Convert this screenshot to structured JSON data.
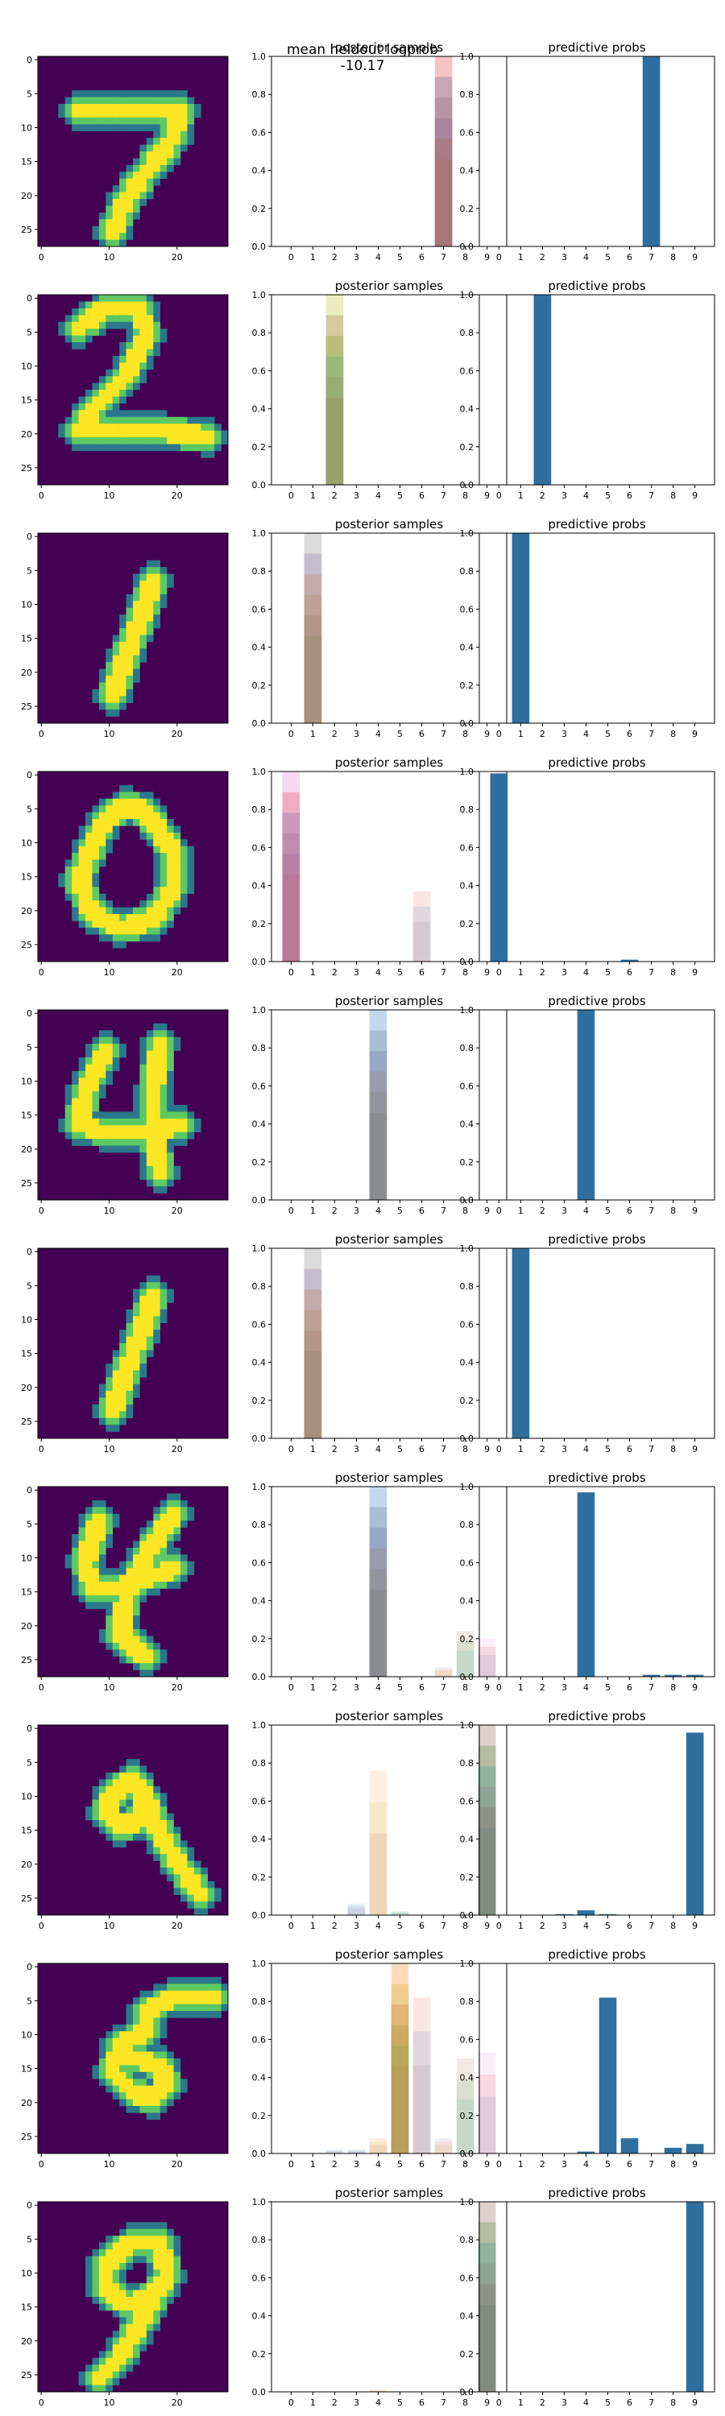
{
  "figure": {
    "suptitle": "mean heldout logprob -10.17",
    "sample_colors": [
      "#ff7f0e",
      "#2ca02c",
      "#d62728",
      "#9467bd",
      "#8c564b",
      "#e377c2",
      "#7f7f7f",
      "#bcbd22",
      "#17becf",
      "#1f77b4"
    ],
    "image_colormap": [
      "#440154",
      "#3b528b",
      "#21918c",
      "#5ec962",
      "#fde725"
    ]
  },
  "chart_data": [
    {
      "row": 1,
      "digit_image": {
        "type": "heatmap",
        "depicts": "7",
        "x_ticks": [
          "0",
          "10",
          "20"
        ],
        "y_ticks": [
          "0",
          "5",
          "10",
          "15",
          "20",
          "25"
        ]
      },
      "posterior_samples": {
        "type": "bar",
        "title": "posterior samples",
        "categories": [
          "0",
          "1",
          "2",
          "3",
          "4",
          "5",
          "6",
          "7",
          "8",
          "9"
        ],
        "ylim": [
          0,
          1.0
        ],
        "yticks": [
          "0.0",
          "0.2",
          "0.4",
          "0.6",
          "0.8",
          "1.0"
        ],
        "max_sample_values": [
          0,
          0,
          0,
          0,
          0,
          0,
          0,
          1.0,
          0,
          0
        ]
      },
      "predictive_probs": {
        "type": "bar",
        "title": "predictive probs",
        "categories": [
          "0",
          "1",
          "2",
          "3",
          "4",
          "5",
          "6",
          "7",
          "8",
          "9"
        ],
        "ylim": [
          0,
          1.0
        ],
        "yticks": [
          "0.0",
          "0.2",
          "0.4",
          "0.6",
          "0.8",
          "1.0"
        ],
        "values": [
          0,
          0,
          0,
          0,
          0,
          0,
          0,
          1.0,
          0,
          0
        ],
        "color": "#2f6f9f"
      }
    },
    {
      "row": 2,
      "digit_image": {
        "type": "heatmap",
        "depicts": "2",
        "x_ticks": [
          "0",
          "10",
          "20"
        ],
        "y_ticks": [
          "0",
          "5",
          "10",
          "15",
          "20",
          "25"
        ]
      },
      "posterior_samples": {
        "type": "bar",
        "title": "posterior samples",
        "categories": [
          "0",
          "1",
          "2",
          "3",
          "4",
          "5",
          "6",
          "7",
          "8",
          "9"
        ],
        "ylim": [
          0,
          1.0
        ],
        "yticks": [
          "0.0",
          "0.2",
          "0.4",
          "0.6",
          "0.8",
          "1.0"
        ],
        "max_sample_values": [
          0,
          0,
          1.0,
          0,
          0,
          0,
          0,
          0,
          0,
          0
        ]
      },
      "predictive_probs": {
        "type": "bar",
        "title": "predictive probs",
        "categories": [
          "0",
          "1",
          "2",
          "3",
          "4",
          "5",
          "6",
          "7",
          "8",
          "9"
        ],
        "ylim": [
          0,
          1.0
        ],
        "yticks": [
          "0.0",
          "0.2",
          "0.4",
          "0.6",
          "0.8",
          "1.0"
        ],
        "values": [
          0,
          0,
          1.0,
          0,
          0,
          0,
          0,
          0,
          0,
          0
        ],
        "color": "#2f6f9f"
      }
    },
    {
      "row": 3,
      "digit_image": {
        "type": "heatmap",
        "depicts": "1",
        "x_ticks": [
          "0",
          "10",
          "20"
        ],
        "y_ticks": [
          "0",
          "5",
          "10",
          "15",
          "20",
          "25"
        ]
      },
      "posterior_samples": {
        "type": "bar",
        "title": "posterior samples",
        "categories": [
          "0",
          "1",
          "2",
          "3",
          "4",
          "5",
          "6",
          "7",
          "8",
          "9"
        ],
        "ylim": [
          0,
          1.0
        ],
        "yticks": [
          "0.0",
          "0.2",
          "0.4",
          "0.6",
          "0.8",
          "1.0"
        ],
        "max_sample_values": [
          0,
          1.0,
          0,
          0,
          0,
          0,
          0,
          0,
          0,
          0
        ]
      },
      "predictive_probs": {
        "type": "bar",
        "title": "predictive probs",
        "categories": [
          "0",
          "1",
          "2",
          "3",
          "4",
          "5",
          "6",
          "7",
          "8",
          "9"
        ],
        "ylim": [
          0,
          1.0
        ],
        "yticks": [
          "0.0",
          "0.2",
          "0.4",
          "0.6",
          "0.8",
          "1.0"
        ],
        "values": [
          0,
          1.0,
          0,
          0,
          0,
          0,
          0,
          0,
          0,
          0
        ],
        "color": "#2f6f9f"
      }
    },
    {
      "row": 4,
      "digit_image": {
        "type": "heatmap",
        "depicts": "0",
        "x_ticks": [
          "0",
          "10",
          "20"
        ],
        "y_ticks": [
          "0",
          "5",
          "10",
          "15",
          "20",
          "25"
        ]
      },
      "posterior_samples": {
        "type": "bar",
        "title": "posterior samples",
        "categories": [
          "0",
          "1",
          "2",
          "3",
          "4",
          "5",
          "6",
          "7",
          "8",
          "9"
        ],
        "ylim": [
          0,
          1.0
        ],
        "yticks": [
          "0.0",
          "0.2",
          "0.4",
          "0.6",
          "0.8",
          "1.0"
        ],
        "max_sample_values": [
          1.0,
          0,
          0,
          0,
          0,
          0,
          0.37,
          0,
          0,
          0
        ]
      },
      "predictive_probs": {
        "type": "bar",
        "title": "predictive probs",
        "categories": [
          "0",
          "1",
          "2",
          "3",
          "4",
          "5",
          "6",
          "7",
          "8",
          "9"
        ],
        "ylim": [
          0,
          1.0
        ],
        "yticks": [
          "0.0",
          "0.2",
          "0.4",
          "0.6",
          "0.8",
          "1.0"
        ],
        "values": [
          0.99,
          0,
          0,
          0,
          0,
          0,
          0.01,
          0,
          0,
          0
        ],
        "color": "#2f6f9f"
      }
    },
    {
      "row": 5,
      "digit_image": {
        "type": "heatmap",
        "depicts": "4",
        "x_ticks": [
          "0",
          "10",
          "20"
        ],
        "y_ticks": [
          "0",
          "5",
          "10",
          "15",
          "20",
          "25"
        ]
      },
      "posterior_samples": {
        "type": "bar",
        "title": "posterior samples",
        "categories": [
          "0",
          "1",
          "2",
          "3",
          "4",
          "5",
          "6",
          "7",
          "8",
          "9"
        ],
        "ylim": [
          0,
          1.0
        ],
        "yticks": [
          "0.0",
          "0.2",
          "0.4",
          "0.6",
          "0.8",
          "1.0"
        ],
        "max_sample_values": [
          0,
          0,
          0,
          0,
          1.0,
          0,
          0,
          0,
          0,
          0
        ]
      },
      "predictive_probs": {
        "type": "bar",
        "title": "predictive probs",
        "categories": [
          "0",
          "1",
          "2",
          "3",
          "4",
          "5",
          "6",
          "7",
          "8",
          "9"
        ],
        "ylim": [
          0,
          1.0
        ],
        "yticks": [
          "0.0",
          "0.2",
          "0.4",
          "0.6",
          "0.8",
          "1.0"
        ],
        "values": [
          0,
          0,
          0,
          0,
          1.0,
          0,
          0,
          0,
          0,
          0
        ],
        "color": "#2f6f9f"
      }
    },
    {
      "row": 6,
      "digit_image": {
        "type": "heatmap",
        "depicts": "1",
        "x_ticks": [
          "0",
          "10",
          "20"
        ],
        "y_ticks": [
          "0",
          "5",
          "10",
          "15",
          "20",
          "25"
        ]
      },
      "posterior_samples": {
        "type": "bar",
        "title": "posterior samples",
        "categories": [
          "0",
          "1",
          "2",
          "3",
          "4",
          "5",
          "6",
          "7",
          "8",
          "9"
        ],
        "ylim": [
          0,
          1.0
        ],
        "yticks": [
          "0.0",
          "0.2",
          "0.4",
          "0.6",
          "0.8",
          "1.0"
        ],
        "max_sample_values": [
          0,
          1.0,
          0,
          0,
          0,
          0,
          0,
          0,
          0,
          0
        ]
      },
      "predictive_probs": {
        "type": "bar",
        "title": "predictive probs",
        "categories": [
          "0",
          "1",
          "2",
          "3",
          "4",
          "5",
          "6",
          "7",
          "8",
          "9"
        ],
        "ylim": [
          0,
          1.0
        ],
        "yticks": [
          "0.0",
          "0.2",
          "0.4",
          "0.6",
          "0.8",
          "1.0"
        ],
        "values": [
          0,
          1.0,
          0,
          0,
          0,
          0,
          0,
          0,
          0,
          0
        ],
        "color": "#2f6f9f"
      }
    },
    {
      "row": 7,
      "digit_image": {
        "type": "heatmap",
        "depicts": "4",
        "x_ticks": [
          "0",
          "10",
          "20"
        ],
        "y_ticks": [
          "0",
          "5",
          "10",
          "15",
          "20",
          "25"
        ]
      },
      "posterior_samples": {
        "type": "bar",
        "title": "posterior samples",
        "categories": [
          "0",
          "1",
          "2",
          "3",
          "4",
          "5",
          "6",
          "7",
          "8",
          "9"
        ],
        "ylim": [
          0,
          1.0
        ],
        "yticks": [
          "0.0",
          "0.2",
          "0.4",
          "0.6",
          "0.8",
          "1.0"
        ],
        "max_sample_values": [
          0,
          0,
          0,
          0,
          1.0,
          0,
          0,
          0.05,
          0.24,
          0.2
        ]
      },
      "predictive_probs": {
        "type": "bar",
        "title": "predictive probs",
        "categories": [
          "0",
          "1",
          "2",
          "3",
          "4",
          "5",
          "6",
          "7",
          "8",
          "9"
        ],
        "ylim": [
          0,
          1.0
        ],
        "yticks": [
          "0.0",
          "0.2",
          "0.4",
          "0.6",
          "0.8",
          "1.0"
        ],
        "values": [
          0,
          0,
          0,
          0,
          0.97,
          0,
          0,
          0.01,
          0.01,
          0.01
        ],
        "color": "#2f6f9f"
      }
    },
    {
      "row": 8,
      "digit_image": {
        "type": "heatmap",
        "depicts": "9",
        "x_ticks": [
          "0",
          "10",
          "20"
        ],
        "y_ticks": [
          "0",
          "5",
          "10",
          "15",
          "20",
          "25"
        ]
      },
      "posterior_samples": {
        "type": "bar",
        "title": "posterior samples",
        "categories": [
          "0",
          "1",
          "2",
          "3",
          "4",
          "5",
          "6",
          "7",
          "8",
          "9"
        ],
        "ylim": [
          0,
          1.0
        ],
        "yticks": [
          "0.0",
          "0.2",
          "0.4",
          "0.6",
          "0.8",
          "1.0"
        ],
        "max_sample_values": [
          0,
          0,
          0,
          0.06,
          0.76,
          0.02,
          0,
          0,
          0,
          1.0
        ]
      },
      "predictive_probs": {
        "type": "bar",
        "title": "predictive probs",
        "categories": [
          "0",
          "1",
          "2",
          "3",
          "4",
          "5",
          "6",
          "7",
          "8",
          "9"
        ],
        "ylim": [
          0,
          1.0
        ],
        "yticks": [
          "0.0",
          "0.2",
          "0.4",
          "0.6",
          "0.8",
          "1.0"
        ],
        "values": [
          0,
          0,
          0,
          0.005,
          0.025,
          0.005,
          0,
          0,
          0,
          0.96
        ],
        "color": "#2f6f9f"
      }
    },
    {
      "row": 9,
      "digit_image": {
        "type": "heatmap",
        "depicts": "5",
        "x_ticks": [
          "0",
          "10",
          "20"
        ],
        "y_ticks": [
          "0",
          "5",
          "10",
          "15",
          "20",
          "25"
        ]
      },
      "posterior_samples": {
        "type": "bar",
        "title": "posterior samples",
        "categories": [
          "0",
          "1",
          "2",
          "3",
          "4",
          "5",
          "6",
          "7",
          "8",
          "9"
        ],
        "ylim": [
          0,
          1.0
        ],
        "yticks": [
          "0.0",
          "0.2",
          "0.4",
          "0.6",
          "0.8",
          "1.0"
        ],
        "max_sample_values": [
          0,
          0,
          0.02,
          0.02,
          0.08,
          1.0,
          0.82,
          0.08,
          0.5,
          0.53
        ]
      },
      "predictive_probs": {
        "type": "bar",
        "title": "predictive probs",
        "categories": [
          "0",
          "1",
          "2",
          "3",
          "4",
          "5",
          "6",
          "7",
          "8",
          "9"
        ],
        "ylim": [
          0,
          1.0
        ],
        "yticks": [
          "0.0",
          "0.2",
          "0.4",
          "0.6",
          "0.8",
          "1.0"
        ],
        "values": [
          0,
          0,
          0,
          0,
          0.01,
          0.82,
          0.08,
          0,
          0.03,
          0.05
        ],
        "color": "#2f6f9f"
      }
    },
    {
      "row": 10,
      "digit_image": {
        "type": "heatmap",
        "depicts": "9",
        "x_ticks": [
          "0",
          "10",
          "20"
        ],
        "y_ticks": [
          "0",
          "5",
          "10",
          "15",
          "20",
          "25"
        ]
      },
      "posterior_samples": {
        "type": "bar",
        "title": "posterior samples",
        "categories": [
          "0",
          "1",
          "2",
          "3",
          "4",
          "5",
          "6",
          "7",
          "8",
          "9"
        ],
        "ylim": [
          0,
          1.0
        ],
        "yticks": [
          "0.0",
          "0.2",
          "0.4",
          "0.6",
          "0.8",
          "1.0"
        ],
        "max_sample_values": [
          0,
          0,
          0,
          0,
          0.01,
          0,
          0,
          0,
          0,
          1.0
        ]
      },
      "predictive_probs": {
        "type": "bar",
        "title": "predictive probs",
        "categories": [
          "0",
          "1",
          "2",
          "3",
          "4",
          "5",
          "6",
          "7",
          "8",
          "9"
        ],
        "ylim": [
          0,
          1.0
        ],
        "yticks": [
          "0.0",
          "0.2",
          "0.4",
          "0.6",
          "0.8",
          "1.0"
        ],
        "values": [
          0,
          0,
          0,
          0,
          0,
          0,
          0,
          0,
          0,
          1.0
        ],
        "color": "#2f6f9f"
      }
    }
  ]
}
